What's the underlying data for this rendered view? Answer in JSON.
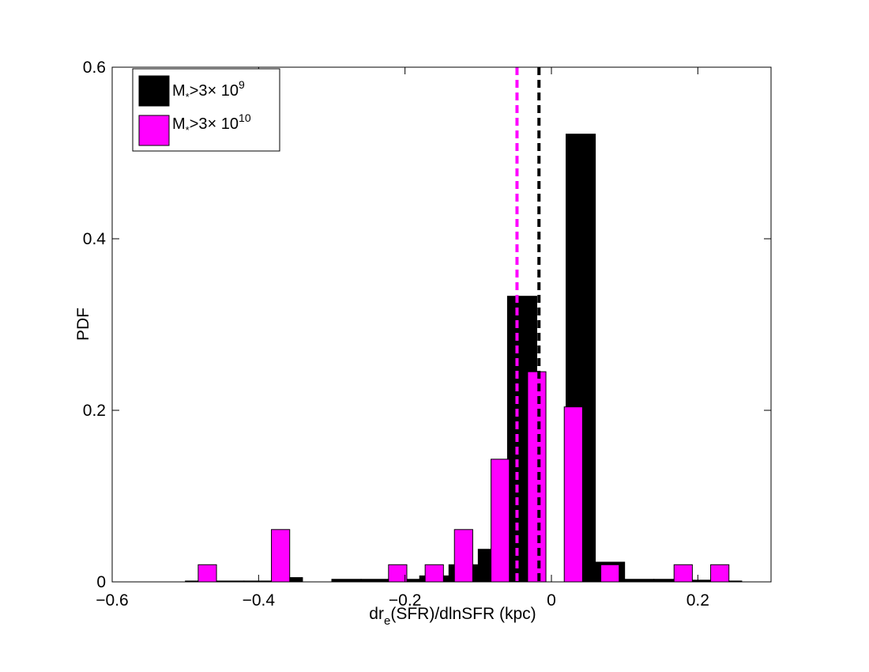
{
  "chart_data": {
    "type": "bar",
    "xlabel_parts": [
      "dr",
      "e",
      "(SFR)/dlnSFR (kpc)"
    ],
    "ylabel": "PDF",
    "xlim": [
      -0.6,
      0.3
    ],
    "ylim": [
      0,
      0.6
    ],
    "xticks": [
      -0.6,
      -0.4,
      -0.2,
      0,
      0.2
    ],
    "xtick_labels": [
      "−0.6",
      "−0.4",
      "−0.2",
      "0",
      "0.2"
    ],
    "yticks": [
      0,
      0.2,
      0.4,
      0.6
    ],
    "ytick_labels": [
      "0",
      "0.2",
      "0.4",
      "0.6"
    ],
    "grid": false,
    "legend_position": "top-left",
    "series": [
      {
        "name": "M*>3× 10^9",
        "label_parts": [
          "M",
          "*",
          ">3× 10",
          "9"
        ],
        "color": "#000000",
        "bin_width": 0.04,
        "bars": [
          {
            "x": -0.48,
            "y": 0.001
          },
          {
            "x": -0.44,
            "y": 0.001
          },
          {
            "x": -0.4,
            "y": 0.001
          },
          {
            "x": -0.36,
            "y": 0.005
          },
          {
            "x": -0.32,
            "y": 0.0
          },
          {
            "x": -0.28,
            "y": 0.003
          },
          {
            "x": -0.24,
            "y": 0.003
          },
          {
            "x": -0.2,
            "y": 0.003
          },
          {
            "x": -0.16,
            "y": 0.007
          },
          {
            "x": -0.12,
            "y": 0.02
          },
          {
            "x": -0.08,
            "y": 0.038
          },
          {
            "x": -0.04,
            "y": 0.333
          },
          {
            "x": 0.0,
            "y": 0.0
          },
          {
            "x": 0.04,
            "y": 0.522
          },
          {
            "x": 0.08,
            "y": 0.023
          },
          {
            "x": 0.12,
            "y": 0.003
          },
          {
            "x": 0.16,
            "y": 0.003
          },
          {
            "x": 0.2,
            "y": 0.002
          },
          {
            "x": 0.24,
            "y": 0.001
          }
        ],
        "median": -0.017
      },
      {
        "name": "M*>3× 10^10",
        "label_parts": [
          "M",
          "*",
          ">3× 10",
          "10"
        ],
        "color": "#ff00ff",
        "bin_width": 0.025,
        "bars": [
          {
            "x": -0.47,
            "y": 0.02
          },
          {
            "x": -0.37,
            "y": 0.061
          },
          {
            "x": -0.21,
            "y": 0.02
          },
          {
            "x": -0.16,
            "y": 0.02
          },
          {
            "x": -0.12,
            "y": 0.061
          },
          {
            "x": -0.07,
            "y": 0.143
          },
          {
            "x": -0.02,
            "y": 0.245
          },
          {
            "x": 0.03,
            "y": 0.204
          },
          {
            "x": 0.08,
            "y": 0.02
          },
          {
            "x": 0.18,
            "y": 0.02
          },
          {
            "x": 0.23,
            "y": 0.02
          }
        ],
        "median": -0.047
      }
    ]
  }
}
